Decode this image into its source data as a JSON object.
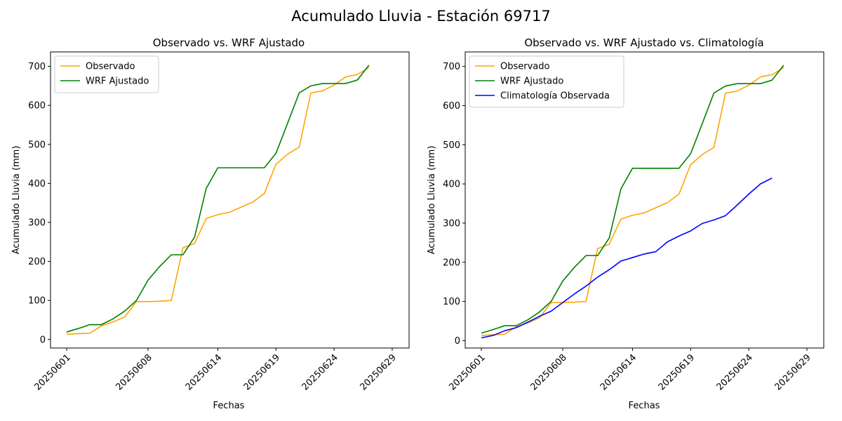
{
  "suptitle": "Acumulado Lluvia - Estación 69717",
  "colors": {
    "Observado": "#ffa500",
    "WRF Ajustado": "#008000",
    "Climatología Observada": "#0000ff"
  },
  "chart_data": [
    {
      "type": "line",
      "title": "Observado vs. WRF Ajustado",
      "xlabel": "Fechas",
      "ylabel": "Acumulado Lluvia (mm)",
      "x": [
        "20250601",
        "20250602",
        "20250603",
        "20250604",
        "20250605",
        "20250606",
        "20250607",
        "20250608",
        "20250609",
        "20250610",
        "20250611",
        "20250612",
        "20250613",
        "20250614",
        "20250615",
        "20250616",
        "20250617",
        "20250618",
        "20250619",
        "20250620",
        "20250621",
        "20250622",
        "20250623",
        "20250624",
        "20250625",
        "20250626",
        "20250627",
        "20250628",
        "20250629"
      ],
      "xticks": [
        "20250601",
        "20250608",
        "20250614",
        "20250619",
        "20250624",
        "20250629"
      ],
      "yticks": [
        0,
        100,
        200,
        300,
        400,
        500,
        600,
        700
      ],
      "ylim": [
        -22,
        737
      ],
      "grid": false,
      "legend_position": "upper-left",
      "series": [
        {
          "name": "Observado",
          "values": [
            13,
            15,
            16,
            35,
            45,
            58,
            97,
            97,
            98,
            100,
            235,
            246,
            310,
            320,
            326,
            339,
            352,
            374,
            449,
            475,
            493,
            632,
            637,
            652,
            673,
            679,
            697,
            null,
            null
          ]
        },
        {
          "name": "WRF Ajustado",
          "values": [
            19,
            28,
            38,
            38,
            53,
            73,
            100,
            152,
            187,
            217,
            217,
            262,
            387,
            440,
            440,
            440,
            440,
            440,
            477,
            554,
            632,
            650,
            656,
            656,
            656,
            665,
            703,
            null,
            null
          ]
        }
      ]
    },
    {
      "type": "line",
      "title": "Observado vs. WRF Ajustado vs. Climatología",
      "xlabel": "Fechas",
      "ylabel": "Acumulado Lluvia (mm)",
      "x": [
        "20250601",
        "20250602",
        "20250603",
        "20250604",
        "20250605",
        "20250606",
        "20250607",
        "20250608",
        "20250609",
        "20250610",
        "20250611",
        "20250612",
        "20250613",
        "20250614",
        "20250615",
        "20250616",
        "20250617",
        "20250618",
        "20250619",
        "20250620",
        "20250621",
        "20250622",
        "20250623",
        "20250624",
        "20250625",
        "20250626",
        "20250627",
        "20250628",
        "20250629"
      ],
      "xticks": [
        "20250601",
        "20250608",
        "20250614",
        "20250619",
        "20250624",
        "20250629"
      ],
      "yticks": [
        0,
        100,
        200,
        300,
        400,
        500,
        600,
        700
      ],
      "ylim": [
        -19,
        737
      ],
      "grid": false,
      "legend_position": "upper-left",
      "series": [
        {
          "name": "Observado",
          "values": [
            13,
            15,
            16,
            35,
            45,
            58,
            97,
            97,
            98,
            100,
            235,
            246,
            310,
            320,
            326,
            339,
            352,
            374,
            449,
            475,
            493,
            632,
            637,
            652,
            673,
            679,
            697,
            null,
            null
          ]
        },
        {
          "name": "WRF Ajustado",
          "values": [
            19,
            28,
            38,
            38,
            53,
            73,
            100,
            152,
            187,
            217,
            217,
            262,
            387,
            440,
            440,
            440,
            440,
            440,
            477,
            554,
            632,
            650,
            656,
            656,
            656,
            665,
            703,
            null,
            null
          ]
        },
        {
          "name": "Climatología Observada",
          "values": [
            7,
            13,
            25,
            33,
            47,
            62,
            75,
            97,
            119,
            139,
            162,
            181,
            203,
            212,
            221,
            227,
            252,
            267,
            280,
            299,
            308,
            319,
            346,
            374,
            400,
            415,
            null,
            null,
            null
          ]
        }
      ]
    }
  ]
}
